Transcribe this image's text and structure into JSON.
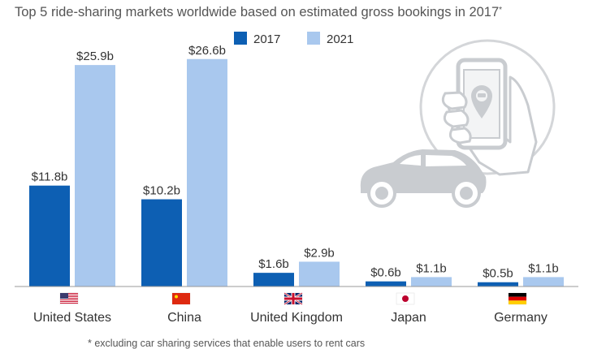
{
  "title_partial": "Top 5 ride-sharing markets worldwide based on estimated gross bookings in 2017",
  "subtitle_asterisk": "*",
  "footnote": "* excluding car sharing services that enable users to rent cars",
  "colors": {
    "series_2017": "#0d5fb3",
    "series_2021": "#a9c8ee",
    "axis": "#999999",
    "grid": "#e6e6e6",
    "illustration": "#c9ccd0"
  },
  "illustration": {
    "icons": [
      "smartphone-hand-icon",
      "location-pin-icon",
      "car-icon"
    ]
  },
  "chart_data": {
    "type": "bar",
    "categories": [
      "United States",
      "China",
      "United Kingdom",
      "Japan",
      "Germany"
    ],
    "flags": [
      "us-flag-icon",
      "china-flag-icon",
      "uk-flag-icon",
      "japan-flag-icon",
      "germany-flag-icon"
    ],
    "series": [
      {
        "name": "2017",
        "values": [
          11.8,
          10.2,
          1.6,
          0.6,
          0.5
        ],
        "labels": [
          "$11.8b",
          "$10.2b",
          "$1.6b",
          "$0.6b",
          "$0.5b"
        ]
      },
      {
        "name": "2021",
        "values": [
          25.9,
          26.6,
          2.9,
          1.1,
          1.1
        ],
        "labels": [
          "$25.9b",
          "$26.6b",
          "$2.9b",
          "$1.1b",
          "$1.1b"
        ]
      }
    ],
    "unit": "$b",
    "ylim": [
      0,
      28
    ],
    "grid": false,
    "legend_position": "top-center"
  }
}
